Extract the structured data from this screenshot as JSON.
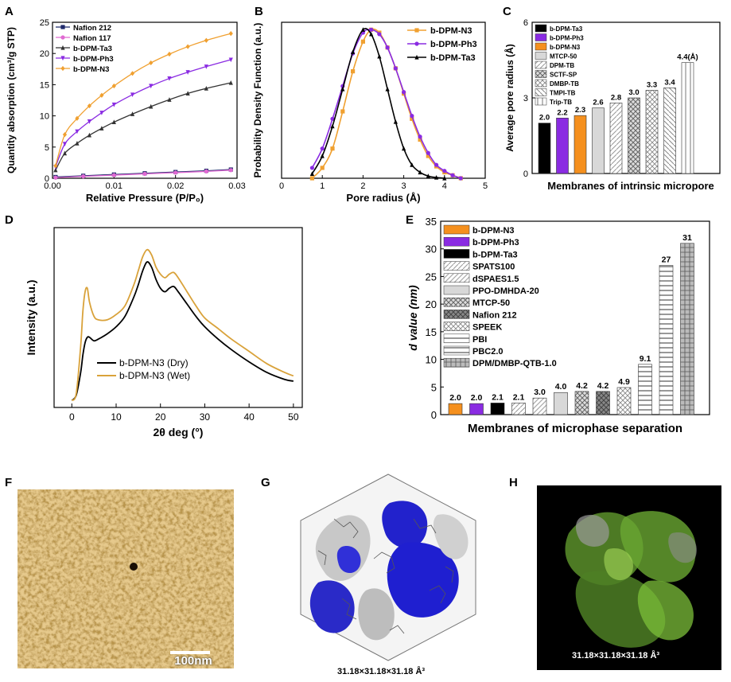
{
  "panels": {
    "A": {
      "letter": "A"
    },
    "B": {
      "letter": "B"
    },
    "C": {
      "letter": "C"
    },
    "D": {
      "letter": "D"
    },
    "E": {
      "letter": "E"
    },
    "F": {
      "letter": "F",
      "scalebar_label": "100nm"
    },
    "G": {
      "letter": "G",
      "caption": "31.18×31.18×31.18 Å³"
    },
    "H": {
      "letter": "H",
      "caption": "31.18×31.18×31.18 Å³"
    }
  },
  "colors": {
    "nafion212": "#1f2a6b",
    "nafion117": "#e06ad2",
    "ta3": "#333333",
    "ph3": "#8a2be2",
    "n3": "#f0a030",
    "dry": "#000000",
    "wet": "#d9a23a",
    "blue_surface": "#2222cc",
    "green_surface": "#6aa832"
  },
  "chart_data": [
    {
      "id": "A",
      "type": "line",
      "xlabel": "Relative Pressure (P/P₀)",
      "ylabel": "Quantity absorption (cm³/g STP)",
      "xlim": [
        0,
        0.03
      ],
      "ylim": [
        0,
        25
      ],
      "xticks": [
        "0.00",
        "0.01",
        "0.02",
        "0.03"
      ],
      "xtick_values": [
        0,
        0.01,
        0.02,
        0.03
      ],
      "yticks": [
        "0",
        "5",
        "10",
        "15",
        "20",
        "25"
      ],
      "ytick_values": [
        0,
        5,
        10,
        15,
        20,
        25
      ],
      "legend_position": "top-left",
      "series": [
        {
          "name": "Nafion 212",
          "color": "#1f2a6b",
          "marker": "square",
          "x": [
            0.0005,
            0.005,
            0.01,
            0.015,
            0.02,
            0.025,
            0.029
          ],
          "y": [
            0.2,
            0.4,
            0.6,
            0.8,
            1.0,
            1.2,
            1.4
          ]
        },
        {
          "name": "Nafion 117",
          "color": "#e06ad2",
          "marker": "circle",
          "x": [
            0.0005,
            0.005,
            0.01,
            0.015,
            0.02,
            0.025,
            0.029
          ],
          "y": [
            0.1,
            0.3,
            0.5,
            0.7,
            0.9,
            1.1,
            1.3
          ]
        },
        {
          "name": "b-DPM-Ta3",
          "color": "#333333",
          "marker": "triangle",
          "x": [
            0.0005,
            0.002,
            0.004,
            0.006,
            0.008,
            0.01,
            0.013,
            0.016,
            0.019,
            0.022,
            0.025,
            0.029
          ],
          "y": [
            1.3,
            4.0,
            5.6,
            6.9,
            8.0,
            9.0,
            10.3,
            11.5,
            12.6,
            13.6,
            14.4,
            15.3
          ]
        },
        {
          "name": "b-DPM-Ph3",
          "color": "#8a2be2",
          "marker": "triangle-down",
          "x": [
            0.0005,
            0.002,
            0.004,
            0.006,
            0.008,
            0.01,
            0.013,
            0.016,
            0.019,
            0.022,
            0.025,
            0.029
          ],
          "y": [
            1.8,
            5.5,
            7.5,
            9.1,
            10.5,
            11.8,
            13.4,
            14.8,
            16.0,
            17.0,
            17.9,
            19.0
          ]
        },
        {
          "name": "b-DPM-N3",
          "color": "#f0a030",
          "marker": "diamond",
          "x": [
            0.0005,
            0.002,
            0.004,
            0.006,
            0.008,
            0.01,
            0.013,
            0.016,
            0.019,
            0.022,
            0.025,
            0.029
          ],
          "y": [
            2.0,
            7.0,
            9.6,
            11.6,
            13.3,
            14.8,
            16.8,
            18.5,
            19.9,
            21.1,
            22.1,
            23.2
          ]
        }
      ]
    },
    {
      "id": "B",
      "type": "line",
      "xlabel": "Pore radius (Å)",
      "ylabel": "Probability Density Function (a.u.)",
      "xlim": [
        0,
        5
      ],
      "ylim": [
        0,
        1.05
      ],
      "xticks": [
        "0",
        "1",
        "2",
        "3",
        "4",
        "5"
      ],
      "xtick_values": [
        0,
        1,
        2,
        3,
        4,
        5
      ],
      "legend_position": "top-right",
      "series": [
        {
          "name": "b-DPM-N3",
          "color": "#f0a030",
          "marker": "square",
          "x": [
            0.75,
            1.0,
            1.25,
            1.5,
            1.75,
            2.0,
            2.2,
            2.4,
            2.6,
            2.8,
            3.0,
            3.2,
            3.4,
            3.6,
            3.8,
            4.0,
            4.2,
            4.4
          ],
          "y": [
            0.0,
            0.07,
            0.2,
            0.45,
            0.72,
            0.92,
            1.0,
            0.98,
            0.88,
            0.74,
            0.57,
            0.4,
            0.26,
            0.15,
            0.08,
            0.04,
            0.02,
            0.0
          ]
        },
        {
          "name": "b-DPM-Ph3",
          "color": "#8a2be2",
          "marker": "circle",
          "x": [
            0.75,
            1.0,
            1.25,
            1.5,
            1.75,
            2.0,
            2.2,
            2.4,
            2.6,
            2.8,
            3.0,
            3.2,
            3.4,
            3.6,
            3.8,
            4.0,
            4.2,
            4.4
          ],
          "y": [
            0.07,
            0.2,
            0.4,
            0.62,
            0.84,
            0.98,
            1.0,
            0.97,
            0.88,
            0.74,
            0.58,
            0.42,
            0.28,
            0.17,
            0.09,
            0.05,
            0.02,
            0.0
          ]
        },
        {
          "name": "b-DPM-Ta3",
          "color": "#000000",
          "marker": "triangle",
          "x": [
            0.75,
            1.0,
            1.25,
            1.5,
            1.75,
            2.0,
            2.2,
            2.4,
            2.6,
            2.8,
            3.0,
            3.2,
            3.4,
            3.6,
            3.8,
            4.0
          ],
          "y": [
            0.03,
            0.15,
            0.35,
            0.6,
            0.85,
            1.0,
            0.97,
            0.82,
            0.6,
            0.38,
            0.2,
            0.09,
            0.04,
            0.015,
            0.005,
            0.0
          ]
        }
      ]
    },
    {
      "id": "C",
      "type": "bar",
      "xlabel": "Membranes of intrinsic micropore",
      "ylabel": "Average pore radius (Å)",
      "ylim": [
        0,
        6
      ],
      "yticks": [
        "0",
        "3",
        "6"
      ],
      "ytick_values": [
        0,
        3,
        6
      ],
      "categories": [
        "b-DPM-Ta3",
        "b-DPM-Ph3",
        "b-DPM-N3",
        "MTCP-50",
        "DPM-TB",
        "SCTF-SP",
        "DMBP-TB",
        "TMPI-TB",
        "Trip-TB"
      ],
      "values": [
        2.0,
        2.2,
        2.3,
        2.6,
        2.8,
        3.0,
        3.3,
        3.4,
        4.4
      ],
      "value_labels": [
        "2.0",
        "2.2",
        "2.3",
        "2.6",
        "2.8",
        "3.0",
        "3.3",
        "3.4",
        "4.4(Å)"
      ],
      "legend_position": "top-left"
    },
    {
      "id": "D",
      "type": "line",
      "xlabel": "2θ deg (°)",
      "ylabel": "Intensity (a.u.)",
      "xlim": [
        -4,
        52
      ],
      "xticks": [
        "0",
        "10",
        "20",
        "30",
        "40",
        "50"
      ],
      "xtick_values": [
        0,
        10,
        20,
        30,
        40,
        50
      ],
      "legend_position": "bottom-left",
      "series": [
        {
          "name": "b-DPM-N3 (Dry)",
          "color": "#000000",
          "x": [
            0,
            1,
            2,
            2.5,
            3,
            3.5,
            4,
            5,
            6,
            8,
            10,
            12,
            14,
            15,
            16,
            17,
            18,
            19,
            20,
            21,
            22,
            23,
            24,
            26,
            28,
            30,
            33,
            36,
            40,
            44,
            48,
            50
          ],
          "y": [
            0.04,
            0.07,
            0.2,
            0.3,
            0.37,
            0.4,
            0.4,
            0.38,
            0.39,
            0.42,
            0.46,
            0.52,
            0.63,
            0.7,
            0.78,
            0.83,
            0.8,
            0.73,
            0.68,
            0.66,
            0.68,
            0.69,
            0.66,
            0.59,
            0.52,
            0.46,
            0.39,
            0.33,
            0.26,
            0.2,
            0.16,
            0.15
          ]
        },
        {
          "name": "b-DPM-N3 (Wet)",
          "color": "#d9a23a",
          "x": [
            0,
            1,
            2,
            2.5,
            3,
            3.5,
            4,
            5,
            6,
            8,
            10,
            12,
            14,
            15,
            16,
            17,
            18,
            19,
            20,
            21,
            22,
            23,
            24,
            26,
            28,
            30,
            33,
            36,
            40,
            44,
            48,
            50
          ],
          "y": [
            0.04,
            0.08,
            0.35,
            0.55,
            0.66,
            0.68,
            0.6,
            0.52,
            0.5,
            0.5,
            0.53,
            0.58,
            0.7,
            0.78,
            0.86,
            0.9,
            0.87,
            0.8,
            0.76,
            0.74,
            0.76,
            0.77,
            0.74,
            0.66,
            0.58,
            0.51,
            0.45,
            0.39,
            0.32,
            0.25,
            0.2,
            0.18
          ]
        }
      ]
    },
    {
      "id": "E",
      "type": "bar",
      "xlabel": "Membranes of microphase separation",
      "ylabel": "d value (nm)",
      "ylim": [
        0,
        35
      ],
      "yticks": [
        "0",
        "5",
        "10",
        "15",
        "20",
        "25",
        "30",
        "35"
      ],
      "ytick_values": [
        0,
        5,
        10,
        15,
        20,
        25,
        30,
        35
      ],
      "categories": [
        "b-DPM-N3",
        "b-DPM-Ph3",
        "b-DPM-Ta3",
        "SPATS100",
        "dSPAES1.5",
        "PPO-DMHDA-20",
        "MTCP-50",
        "Nafion 212",
        "SPEEK",
        "PBI",
        "PBC2.0",
        "DPM/DMBP-QTB-1.0"
      ],
      "values": [
        2.0,
        2.0,
        2.1,
        2.1,
        3.0,
        4.0,
        4.2,
        4.2,
        4.9,
        9.1,
        27,
        31
      ],
      "value_labels": [
        "2.0",
        "2.0",
        "2.1",
        "2.1",
        "3.0",
        "4.0",
        "4.2",
        "4.2",
        "4.9",
        "9.1",
        "27",
        "31"
      ],
      "legend_position": "top-left"
    }
  ]
}
